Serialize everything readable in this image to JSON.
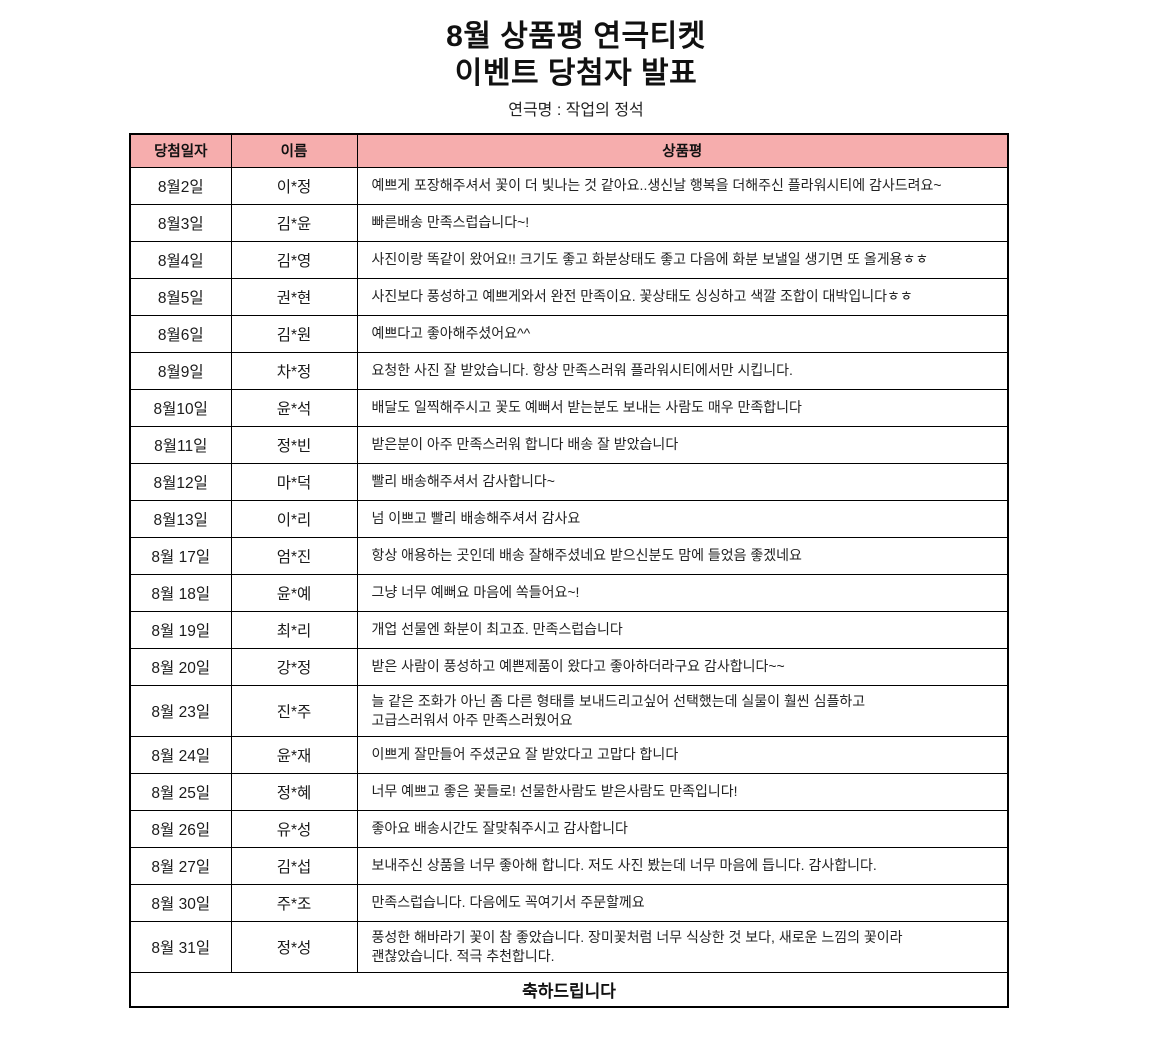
{
  "title_line1": "8월 상품평 연극티켓",
  "title_line2": "이벤트 당첨자 발표",
  "subtitle": "연극명 : 작업의 정석",
  "colors": {
    "header_bg": "#F6ADAD",
    "border": "#000000"
  },
  "table": {
    "headers": [
      "당첨일자",
      "이름",
      "상품평"
    ],
    "rows": [
      {
        "date": "8월2일",
        "name": "이*정",
        "review": "예쁘게 포장해주셔서 꽃이 더 빛나는 것 같아요..생신날 행복을 더해주신 플라워시티에 감사드려요~"
      },
      {
        "date": "8월3일",
        "name": "김*윤",
        "review": "빠른배송 만족스럽습니다~!"
      },
      {
        "date": "8월4일",
        "name": "김*영",
        "review": "사진이랑 똑같이 왔어요!! 크기도 좋고 화분상태도 좋고 다음에 화분 보낼일 생기면 또 올게용ㅎㅎ"
      },
      {
        "date": "8월5일",
        "name": "권*현",
        "review": "사진보다 풍성하고 예쁘게와서 완전 만족이요. 꽃상태도 싱싱하고 색깔 조합이 대박입니다ㅎㅎ"
      },
      {
        "date": "8월6일",
        "name": "김*원",
        "review": "예쁘다고 좋아해주셨어요^^"
      },
      {
        "date": "8월9일",
        "name": "차*정",
        "review": "요청한 사진 잘 받았습니다. 항상 만족스러워 플라워시티에서만 시킵니다."
      },
      {
        "date": "8월10일",
        "name": "윤*석",
        "review": "배달도 일찍해주시고 꽃도 예뻐서 받는분도 보내는 사람도 매우 만족합니다"
      },
      {
        "date": "8월11일",
        "name": "정*빈",
        "review": "받은분이 아주 만족스러워 합니다 배송 잘 받았습니다"
      },
      {
        "date": "8월12일",
        "name": "마*덕",
        "review": "빨리 배송해주셔서 감사합니다~"
      },
      {
        "date": "8월13일",
        "name": "이*리",
        "review": "넘 이쁘고 빨리 배송해주셔서 감사요"
      },
      {
        "date": "8월 17일",
        "name": "엄*진",
        "review": "항상 애용하는 곳인데 배송 잘해주셨네요 받으신분도 맘에 들었음 좋겠네요"
      },
      {
        "date": "8월 18일",
        "name": "윤*예",
        "review": "그냥 너무 예뻐요 마음에 쏙들어요~!"
      },
      {
        "date": "8월 19일",
        "name": "최*리",
        "review": "개업 선물엔 화분이 최고죠. 만족스럽습니다"
      },
      {
        "date": "8월 20일",
        "name": "강*정",
        "review": "받은 사람이 풍성하고 예쁜제품이 왔다고 좋아하더라구요 감사합니다~~"
      },
      {
        "date": "8월 23일",
        "name": "진*주",
        "review": "늘 같은 조화가 아닌 좀 다른 형태를 보내드리고싶어 선택했는데 실물이 훨씬 심플하고\n고급스러워서 아주 만족스러웠어요"
      },
      {
        "date": "8월 24일",
        "name": "윤*재",
        "review": "이쁘게 잘만들어 주셨군요 잘 받았다고 고맙다 합니다"
      },
      {
        "date": "8월 25일",
        "name": "정*혜",
        "review": "너무 예쁘고 좋은 꽃들로! 선물한사람도 받은사람도 만족입니다!"
      },
      {
        "date": "8월 26일",
        "name": "유*성",
        "review": "좋아요 배송시간도 잘맞춰주시고 감사합니다"
      },
      {
        "date": "8월 27일",
        "name": "김*섭",
        "review": "보내주신 상품을 너무 좋아해 합니다. 저도 사진 봤는데 너무 마음에 듭니다. 감사합니다."
      },
      {
        "date": "8월 30일",
        "name": "주*조",
        "review": "만족스럽습니다. 다음에도 꼭여기서 주문할께요"
      },
      {
        "date": "8월 31일",
        "name": "정*성",
        "review": "풍성한 해바라기 꽃이 참 좋았습니다. 장미꽃처럼 너무 식상한 것 보다, 새로운 느낌의 꽃이라\n괜찮았습니다. 적극 추천합니다."
      }
    ],
    "footer": "축하드립니다"
  }
}
